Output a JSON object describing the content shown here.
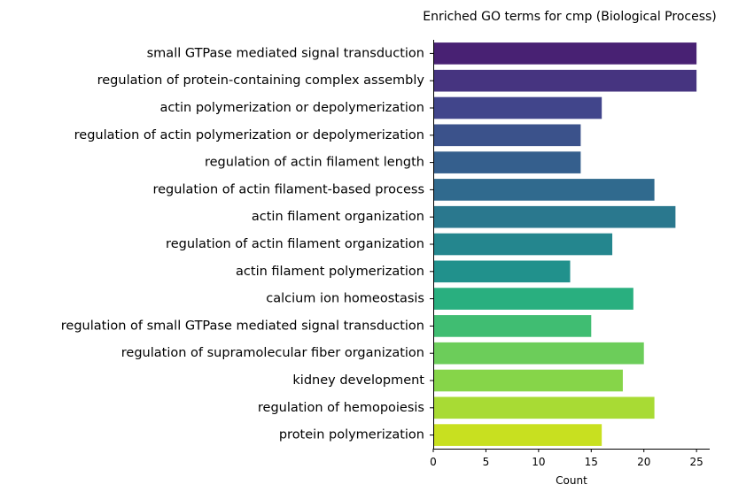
{
  "chart_data": {
    "type": "bar",
    "orientation": "horizontal",
    "title": "Enriched GO terms for cmp (Biological Process)",
    "xlabel": "Count",
    "ylabel": "",
    "xlim": [
      0,
      26.25
    ],
    "xticks": [
      0,
      5,
      10,
      15,
      20,
      25
    ],
    "grid": false,
    "legend": "none",
    "palette": "viridis",
    "categories": [
      "small GTPase mediated signal transduction",
      "regulation of protein-containing complex assembly",
      "actin polymerization or depolymerization",
      "regulation of actin polymerization or depolymerization",
      "regulation of actin filament length",
      "regulation of actin filament-based process",
      "actin filament organization",
      "regulation of actin filament organization",
      "actin filament polymerization",
      "calcium ion homeostasis",
      "regulation of small GTPase mediated signal transduction",
      "regulation of supramolecular fiber organization",
      "kidney development",
      "regulation of hemopoiesis",
      "protein polymerization"
    ],
    "values": [
      25,
      25,
      16,
      14,
      14,
      21,
      23,
      17,
      13,
      19,
      15,
      20,
      18,
      21,
      16
    ],
    "colors": [
      "#482173",
      "#463480",
      "#41458b",
      "#3b528b",
      "#355f8d",
      "#306a8e",
      "#2a788e",
      "#24868e",
      "#21918c",
      "#29af7f",
      "#40bd72",
      "#6ccd5a",
      "#86d549",
      "#a8db34",
      "#c8e020"
    ]
  }
}
